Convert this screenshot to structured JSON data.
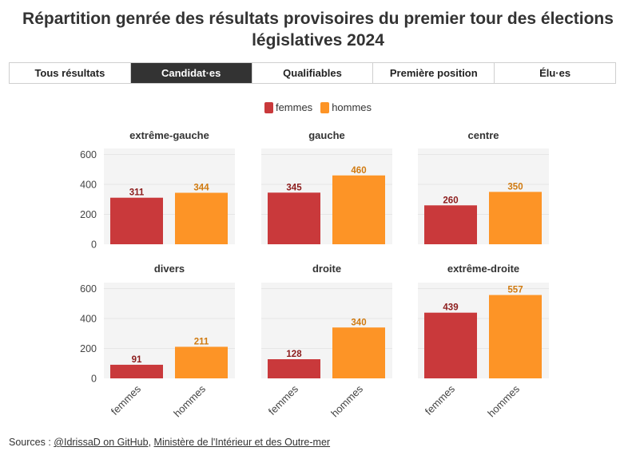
{
  "title": "Répartition genrée des résultats provisoires du premier tour des élections législatives 2024",
  "tabs": [
    {
      "label": "Tous résultats",
      "active": false
    },
    {
      "label": "Candidat·es",
      "active": true
    },
    {
      "label": "Qualifiables",
      "active": false
    },
    {
      "label": "Première position",
      "active": false
    },
    {
      "label": "Élu·es",
      "active": false
    }
  ],
  "colors": {
    "femmes": "#c9393b",
    "hommes": "#fd9426",
    "femmes_label": "#8c1c1c",
    "hommes_label": "#d07a10",
    "panel_bg": "#f4f4f4"
  },
  "legend": [
    {
      "label": "femmes",
      "color": "#c9393b"
    },
    {
      "label": "hommes",
      "color": "#fd9426"
    }
  ],
  "sources": {
    "prefix": "Sources : ",
    "link1": "@IdrissaD on GitHub",
    "separator": ", ",
    "link2": "Ministère de l'Intérieur et des Outre-mer"
  },
  "chart_data": {
    "type": "bar",
    "categories": [
      "femmes",
      "hommes"
    ],
    "ylim": [
      0,
      640
    ],
    "yticks": [
      0,
      200,
      400,
      600
    ],
    "panels": [
      {
        "title": "extrême-gauche",
        "values": [
          311,
          344
        ]
      },
      {
        "title": "gauche",
        "values": [
          345,
          460
        ]
      },
      {
        "title": "centre",
        "values": [
          260,
          350
        ]
      },
      {
        "title": "divers",
        "values": [
          91,
          211
        ]
      },
      {
        "title": "droite",
        "values": [
          128,
          340
        ]
      },
      {
        "title": "extrême-droite",
        "values": [
          439,
          557
        ]
      }
    ]
  }
}
